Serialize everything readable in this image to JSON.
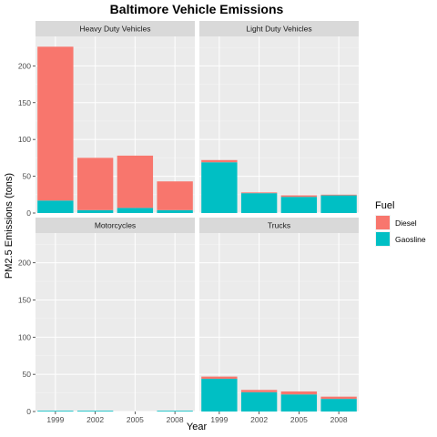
{
  "chart_data": {
    "type": "bar",
    "stacked": true,
    "facet_layout": "2x2",
    "title": "Baltimore Vehicle Emissions",
    "xlabel": "Year",
    "ylabel": "PM2.5 Emissions (tons)",
    "categories": [
      "1999",
      "2002",
      "2005",
      "2008"
    ],
    "ylim": [
      0,
      240
    ],
    "yticks": [
      0,
      50,
      100,
      150,
      200
    ],
    "grid": true,
    "legend": {
      "title": "Fuel",
      "position": "right",
      "entries": [
        {
          "name": "Diesel",
          "color": "#F8766D"
        },
        {
          "name": "Gaosline",
          "color": "#00BFC4"
        }
      ]
    },
    "facets": [
      {
        "name": "Heavy Duty Vehicles",
        "series": [
          {
            "name": "Gaosline",
            "values": [
              17,
              4,
              7,
              4
            ]
          },
          {
            "name": "Diesel",
            "values": [
              209,
              71,
              71,
              39
            ]
          }
        ]
      },
      {
        "name": "Light Duty Vehicles",
        "series": [
          {
            "name": "Gaosline",
            "values": [
              69,
              27,
              22,
              24
            ]
          },
          {
            "name": "Diesel",
            "values": [
              3,
              1,
              2,
              1
            ]
          }
        ]
      },
      {
        "name": "Motorcycles",
        "series": [
          {
            "name": "Gaosline",
            "values": [
              1,
              1,
              0,
              1
            ]
          },
          {
            "name": "Diesel",
            "values": [
              0,
              0,
              0,
              0
            ]
          }
        ]
      },
      {
        "name": "Trucks",
        "series": [
          {
            "name": "Gaosline",
            "values": [
              44,
              26,
              23,
              17
            ]
          },
          {
            "name": "Diesel",
            "values": [
              3,
              3,
              4,
              3
            ]
          }
        ]
      }
    ]
  }
}
